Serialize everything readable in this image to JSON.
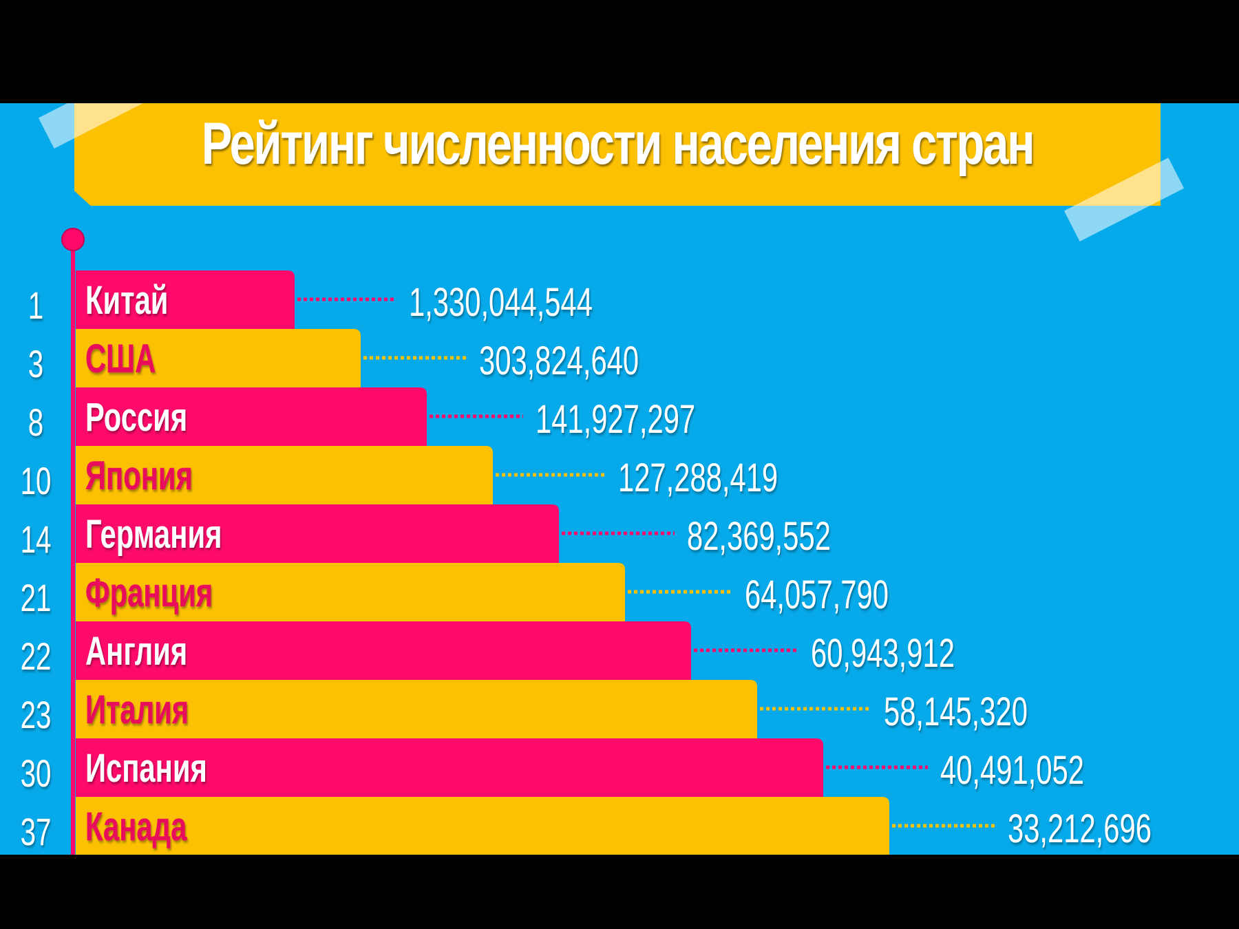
{
  "title": "Рейтинг численности населения стран",
  "colors": {
    "background": "#06a9e9",
    "pink": "#fd0a6a",
    "yellow": "#fcc102",
    "white": "#ffffff"
  },
  "chart_data": {
    "type": "bar",
    "title": "Рейтинг численности населения стран",
    "categories": [
      "Китай",
      "США",
      "Россия",
      "Япония",
      "Германия",
      "Франция",
      "Англия",
      "Италия",
      "Испания",
      "Канада"
    ],
    "ranks": [
      "1",
      "3",
      "8",
      "10",
      "14",
      "21",
      "22",
      "23",
      "30",
      "37"
    ],
    "value_labels": [
      "1,330,044,544",
      "303,824,640",
      "141,927,297",
      "127,288,419",
      "82,369,552",
      "64,057,790",
      "60,943,912",
      "58,145,320",
      "40,491,052",
      "33,212,696"
    ],
    "series": [
      {
        "values": [
          1330044544,
          303824640,
          141927297,
          127288419,
          82369552,
          64057790,
          60943912,
          58145320,
          40491052,
          33212696
        ]
      }
    ],
    "bar_colors": [
      "pink",
      "yellow",
      "pink",
      "yellow",
      "pink",
      "yellow",
      "pink",
      "yellow",
      "pink",
      "yellow"
    ],
    "grid": false,
    "legend": "none"
  }
}
